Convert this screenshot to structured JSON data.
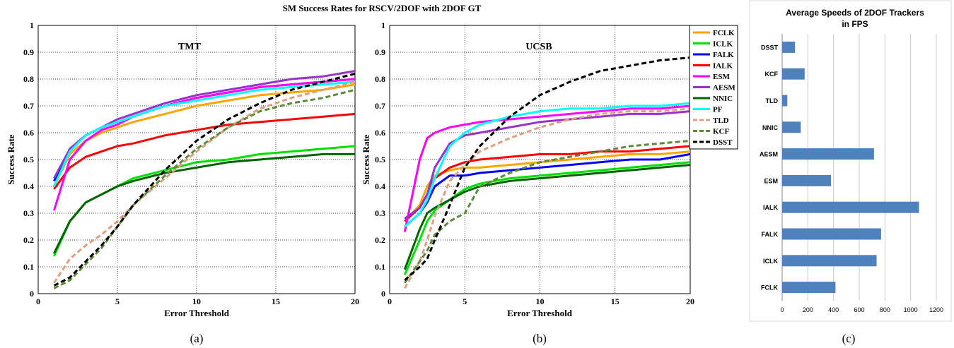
{
  "figure": {
    "title": "SM Success Rates for RSCV/2DOF with 2DOF GT",
    "panel_labels": [
      "(a)",
      "(b)",
      "(c)"
    ]
  },
  "colors": {
    "FCLK": "#ffa500",
    "ICLK": "#00e000",
    "FALK": "#0000ff",
    "IALK": "#ff0000",
    "ESM": "#ff00ff",
    "AESM": "#9932cc",
    "NNIC": "#006400",
    "PF": "#00ffff",
    "TLD": "#e0a080",
    "KCF": "#5a8a3a",
    "DSST": "#000000",
    "bar": "#4f81bd"
  },
  "legend": [
    {
      "name": "FCLK",
      "style": "solid"
    },
    {
      "name": "ICLK",
      "style": "solid"
    },
    {
      "name": "FALK",
      "style": "solid"
    },
    {
      "name": "IALK",
      "style": "solid"
    },
    {
      "name": "ESM",
      "style": "solid"
    },
    {
      "name": "AESM",
      "style": "solid"
    },
    {
      "name": "NNIC",
      "style": "solid"
    },
    {
      "name": "PF",
      "style": "solid"
    },
    {
      "name": "TLD",
      "style": "dashed"
    },
    {
      "name": "KCF",
      "style": "dashed"
    },
    {
      "name": "DSST",
      "style": "dashed"
    }
  ],
  "chart_data": [
    {
      "type": "line",
      "panel": "(a)",
      "title": "TMT",
      "xlabel": "Error Threshold",
      "ylabel": "Success Rate",
      "xlim": [
        0,
        20
      ],
      "ylim": [
        0,
        1
      ],
      "xticks": [
        0,
        5,
        10,
        15,
        20
      ],
      "yticks": [
        0,
        0.1,
        0.2,
        0.3,
        0.4,
        0.5,
        0.6,
        0.7,
        0.8,
        0.9,
        1
      ],
      "grid": true,
      "x": [
        1,
        2,
        3,
        4,
        5,
        6,
        8,
        10,
        12,
        14,
        16,
        18,
        20
      ],
      "series": [
        {
          "name": "FCLK",
          "values": [
            0.4,
            0.52,
            0.57,
            0.6,
            0.62,
            0.64,
            0.67,
            0.7,
            0.72,
            0.74,
            0.75,
            0.76,
            0.78
          ]
        },
        {
          "name": "ICLK",
          "values": [
            0.14,
            0.27,
            0.34,
            0.37,
            0.4,
            0.43,
            0.46,
            0.49,
            0.5,
            0.52,
            0.53,
            0.54,
            0.55
          ]
        },
        {
          "name": "FALK",
          "values": [
            0.42,
            0.54,
            0.59,
            0.62,
            0.64,
            0.66,
            0.7,
            0.73,
            0.75,
            0.77,
            0.78,
            0.79,
            0.8
          ]
        },
        {
          "name": "IALK",
          "values": [
            0.39,
            0.47,
            0.51,
            0.53,
            0.55,
            0.56,
            0.59,
            0.61,
            0.63,
            0.64,
            0.65,
            0.66,
            0.67
          ]
        },
        {
          "name": "ESM",
          "values": [
            0.31,
            0.5,
            0.57,
            0.61,
            0.63,
            0.66,
            0.7,
            0.73,
            0.75,
            0.77,
            0.78,
            0.79,
            0.8
          ]
        },
        {
          "name": "AESM",
          "values": [
            0.43,
            0.54,
            0.59,
            0.62,
            0.65,
            0.67,
            0.71,
            0.74,
            0.76,
            0.78,
            0.8,
            0.81,
            0.83
          ]
        },
        {
          "name": "NNIC",
          "values": [
            0.15,
            0.27,
            0.34,
            0.37,
            0.4,
            0.42,
            0.45,
            0.47,
            0.49,
            0.5,
            0.51,
            0.52,
            0.52
          ]
        },
        {
          "name": "PF",
          "values": [
            0.4,
            0.53,
            0.59,
            0.62,
            0.64,
            0.66,
            0.7,
            0.72,
            0.74,
            0.76,
            0.77,
            0.78,
            0.79
          ]
        },
        {
          "name": "TLD",
          "values": [
            0.04,
            0.13,
            0.18,
            0.22,
            0.27,
            0.33,
            0.43,
            0.53,
            0.62,
            0.69,
            0.73,
            0.76,
            0.79
          ]
        },
        {
          "name": "KCF",
          "values": [
            0.02,
            0.05,
            0.11,
            0.17,
            0.25,
            0.33,
            0.44,
            0.54,
            0.62,
            0.68,
            0.71,
            0.73,
            0.76
          ]
        },
        {
          "name": "DSST",
          "values": [
            0.03,
            0.06,
            0.12,
            0.18,
            0.25,
            0.33,
            0.46,
            0.57,
            0.65,
            0.71,
            0.76,
            0.79,
            0.82
          ]
        }
      ]
    },
    {
      "type": "line",
      "panel": "(b)",
      "title": "UCSB",
      "xlabel": "Error Threshold",
      "ylabel": "Success Rate",
      "xlim": [
        0,
        20
      ],
      "ylim": [
        0,
        1
      ],
      "xticks": [
        0,
        5,
        10,
        15,
        20
      ],
      "yticks": [
        0,
        0.1,
        0.2,
        0.3,
        0.4,
        0.5,
        0.6,
        0.7,
        0.8,
        0.9,
        1
      ],
      "grid": true,
      "x": [
        1,
        2,
        2.5,
        3,
        4,
        5,
        6,
        8,
        10,
        12,
        14,
        16,
        18,
        20
      ],
      "series": [
        {
          "name": "FCLK",
          "values": [
            0.27,
            0.33,
            0.4,
            0.44,
            0.46,
            0.47,
            0.47,
            0.48,
            0.49,
            0.5,
            0.51,
            0.52,
            0.52,
            0.53
          ]
        },
        {
          "name": "ICLK",
          "values": [
            0.07,
            0.2,
            0.27,
            0.31,
            0.35,
            0.39,
            0.41,
            0.43,
            0.44,
            0.45,
            0.46,
            0.47,
            0.48,
            0.49
          ]
        },
        {
          "name": "FALK",
          "values": [
            0.25,
            0.3,
            0.34,
            0.4,
            0.44,
            0.44,
            0.45,
            0.46,
            0.47,
            0.48,
            0.49,
            0.5,
            0.5,
            0.52
          ]
        },
        {
          "name": "IALK",
          "values": [
            0.27,
            0.32,
            0.37,
            0.43,
            0.47,
            0.49,
            0.5,
            0.51,
            0.52,
            0.52,
            0.53,
            0.53,
            0.54,
            0.55
          ]
        },
        {
          "name": "ESM",
          "values": [
            0.23,
            0.5,
            0.58,
            0.6,
            0.62,
            0.63,
            0.64,
            0.65,
            0.66,
            0.67,
            0.68,
            0.69,
            0.69,
            0.7
          ]
        },
        {
          "name": "AESM",
          "values": [
            0.28,
            0.32,
            0.37,
            0.47,
            0.56,
            0.59,
            0.6,
            0.62,
            0.64,
            0.65,
            0.66,
            0.67,
            0.67,
            0.68
          ]
        },
        {
          "name": "NNIC",
          "values": [
            0.09,
            0.24,
            0.3,
            0.32,
            0.35,
            0.38,
            0.4,
            0.42,
            0.43,
            0.44,
            0.45,
            0.46,
            0.47,
            0.48
          ]
        },
        {
          "name": "PF",
          "values": [
            0.25,
            0.3,
            0.35,
            0.43,
            0.55,
            0.6,
            0.63,
            0.66,
            0.68,
            0.69,
            0.69,
            0.7,
            0.7,
            0.71
          ]
        },
        {
          "name": "TLD",
          "values": [
            0.02,
            0.12,
            0.2,
            0.29,
            0.42,
            0.48,
            0.53,
            0.58,
            0.62,
            0.65,
            0.67,
            0.68,
            0.68,
            0.69
          ]
        },
        {
          "name": "KCF",
          "values": [
            0.04,
            0.12,
            0.16,
            0.22,
            0.27,
            0.3,
            0.4,
            0.45,
            0.49,
            0.51,
            0.53,
            0.55,
            0.56,
            0.57
          ]
        },
        {
          "name": "DSST",
          "values": [
            0.05,
            0.1,
            0.13,
            0.2,
            0.33,
            0.47,
            0.55,
            0.66,
            0.74,
            0.79,
            0.83,
            0.85,
            0.87,
            0.88
          ]
        }
      ]
    },
    {
      "type": "bar",
      "orientation": "horizontal",
      "panel": "(c)",
      "title": "Average Speeds of 2DOF Trackers in FPS",
      "title_lines": [
        "Average Speeds of 2DOF Trackers",
        "in FPS"
      ],
      "categories": [
        "DSST",
        "KCF",
        "TLD",
        "NNIC",
        "AESM",
        "ESM",
        "IALK",
        "FALK",
        "ICLK",
        "FCLK"
      ],
      "values": [
        100,
        175,
        40,
        145,
        715,
        380,
        1065,
        770,
        735,
        415
      ],
      "xlim": [
        0,
        1200
      ],
      "xticks": [
        0,
        200,
        400,
        600,
        800,
        1000,
        1200
      ],
      "grid": true
    }
  ]
}
